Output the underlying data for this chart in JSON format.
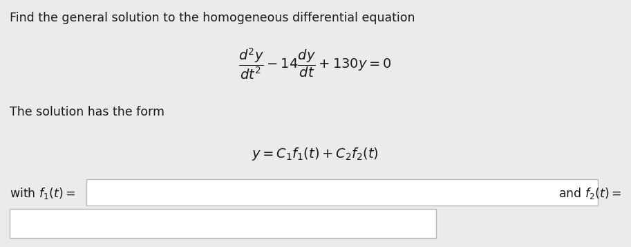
{
  "background_color": "#ebebeb",
  "title_text": "Find the general solution to the homogeneous differential equation",
  "title_fontsize": 12.5,
  "title_color": "#1a1a1a",
  "eq1_fontsize": 14,
  "solution_form_fontsize": 12.5,
  "eq2_fontsize": 14,
  "with_f1_fontsize": 12.5,
  "and_f2_fontsize": 12.5,
  "box_facecolor": "#ffffff",
  "box_edgecolor": "#bbbbbb",
  "text_color": "#222222"
}
